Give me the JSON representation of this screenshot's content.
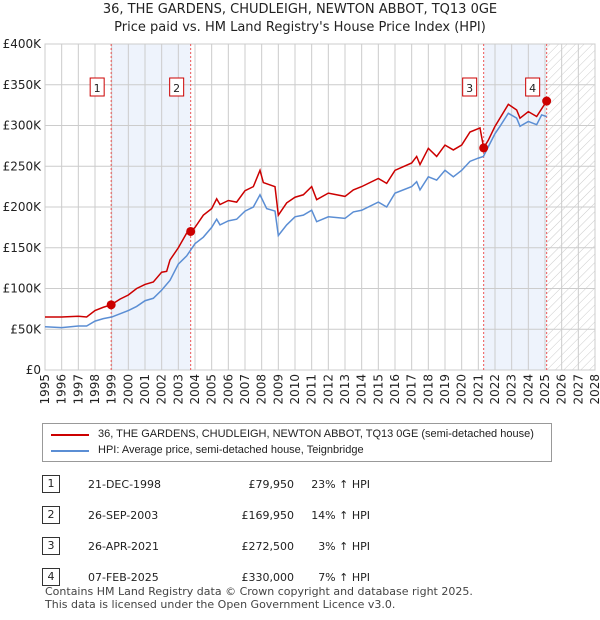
{
  "title": "36, THE GARDENS, CHUDLEIGH, NEWTON ABBOT, TQ13 0GE",
  "subtitle": "Price paid vs. HM Land Registry's House Price Index (HPI)",
  "colors": {
    "property": "#cc0000",
    "hpi": "#5b8ed4",
    "shade": "#eef3fc"
  },
  "chart_data": {
    "type": "line",
    "title": "36, THE GARDENS, CHUDLEIGH, NEWTON ABBOT, TQ13 0GE",
    "xlim": [
      1995,
      2028
    ],
    "ylim": [
      0,
      400000
    ],
    "y_ticks": [
      {
        "v": 0,
        "label": "£0"
      },
      {
        "v": 50000,
        "label": "£50K"
      },
      {
        "v": 100000,
        "label": "£100K"
      },
      {
        "v": 150000,
        "label": "£150K"
      },
      {
        "v": 200000,
        "label": "£200K"
      },
      {
        "v": 250000,
        "label": "£250K"
      },
      {
        "v": 300000,
        "label": "£300K"
      },
      {
        "v": 350000,
        "label": "£350K"
      },
      {
        "v": 400000,
        "label": "£400K"
      }
    ],
    "x_ticks": [
      "1995",
      "1996",
      "1997",
      "1998",
      "1999",
      "2000",
      "2001",
      "2002",
      "2003",
      "2004",
      "2005",
      "2006",
      "2007",
      "2008",
      "2009",
      "2010",
      "2011",
      "2012",
      "2013",
      "2014",
      "2015",
      "2016",
      "2017",
      "2018",
      "2019",
      "2020",
      "2021",
      "2022",
      "2023",
      "2024",
      "2025",
      "2026",
      "2027",
      "2028"
    ],
    "series": [
      {
        "name": "36, THE GARDENS, CHUDLEIGH, NEWTON ABBOT, TQ13 0GE (semi-detached house)",
        "x": [
          1995,
          1996,
          1997,
          1997.5,
          1998,
          1998.5,
          1998.97,
          1999.5,
          2000,
          2000.5,
          2001,
          2001.5,
          2002,
          2002.3,
          2002.5,
          2003,
          2003.5,
          2003.74,
          2004,
          2004.5,
          2005,
          2005.3,
          2005.5,
          2006,
          2006.5,
          2007,
          2007.5,
          2007.9,
          2008.1,
          2008.8,
          2009,
          2009.5,
          2010,
          2010.5,
          2011,
          2011.3,
          2012,
          2013,
          2013.5,
          2014,
          2015,
          2015.5,
          2016,
          2017,
          2017.3,
          2017.5,
          2018,
          2018.5,
          2019,
          2019.5,
          2020,
          2020.5,
          2021.1,
          2021.32,
          2021.6,
          2022,
          2022.8,
          2023.3,
          2023.5,
          2024,
          2024.5,
          2025.1
        ],
        "y": [
          65,
          65,
          66,
          65,
          73,
          77,
          80,
          87,
          92,
          100,
          105,
          108,
          120,
          121,
          135,
          150,
          168,
          170,
          175,
          190,
          198,
          210,
          203,
          208,
          206,
          220,
          225,
          245,
          230,
          225,
          190,
          205,
          212,
          215,
          225,
          209,
          217,
          213,
          221,
          225,
          235,
          229,
          245,
          254,
          262,
          252,
          272,
          262,
          276,
          270,
          276,
          292,
          297,
          272.5,
          282,
          299,
          326,
          319,
          309,
          317,
          311,
          330
        ]
      },
      {
        "name": "HPI: Average price, semi-detached house, Teignbridge",
        "x": [
          1995,
          1996,
          1997,
          1997.5,
          1998,
          1998.5,
          1999,
          2000,
          2000.5,
          2001,
          2001.5,
          2002,
          2002.5,
          2003,
          2003.5,
          2004,
          2004.5,
          2005,
          2005.3,
          2005.5,
          2006,
          2006.5,
          2007,
          2007.5,
          2007.9,
          2008.3,
          2008.8,
          2009,
          2009.5,
          2010,
          2010.5,
          2011,
          2011.3,
          2012,
          2013,
          2013.5,
          2014,
          2015,
          2015.5,
          2016,
          2017,
          2017.3,
          2017.5,
          2018,
          2018.5,
          2019,
          2019.5,
          2020,
          2020.5,
          2021,
          2021.3,
          2022,
          2022.3,
          2022.8,
          2023.3,
          2023.5,
          2024,
          2024.5,
          2024.8,
          2025.1
        ],
        "y": [
          53,
          52,
          54,
          54,
          60,
          63,
          65,
          73,
          78,
          85,
          88,
          98,
          110,
          130,
          140,
          155,
          163,
          175,
          185,
          178,
          183,
          185,
          195,
          200,
          215,
          198,
          195,
          165,
          178,
          188,
          190,
          196,
          182,
          188,
          186,
          194,
          196,
          206,
          200,
          217,
          225,
          231,
          221,
          237,
          233,
          245,
          237,
          245,
          256,
          260,
          262,
          290,
          299,
          315,
          309,
          299,
          305,
          301,
          313,
          311
        ]
      }
    ],
    "y_unit": "thousands GBP",
    "sales": [
      {
        "n": "1",
        "x": 1998.97,
        "y": 79.95
      },
      {
        "n": "2",
        "x": 2003.74,
        "y": 169.95
      },
      {
        "n": "3",
        "x": 2021.32,
        "y": 272.5
      },
      {
        "n": "4",
        "x": 2025.1,
        "y": 330
      }
    ],
    "shaded": [
      [
        1998.97,
        2003.74
      ],
      [
        2021.32,
        2025.1
      ]
    ],
    "forecast_from": 2025.1
  },
  "legend": {
    "property": "36, THE GARDENS, CHUDLEIGH, NEWTON ABBOT, TQ13 0GE (semi-detached house)",
    "hpi": "HPI: Average price, semi-detached house, Teignbridge"
  },
  "table": [
    {
      "n": "1",
      "date": "21-DEC-1998",
      "price": "£79,950",
      "hpi": "23% ↑ HPI"
    },
    {
      "n": "2",
      "date": "26-SEP-2003",
      "price": "£169,950",
      "hpi": "14% ↑ HPI"
    },
    {
      "n": "3",
      "date": "26-APR-2021",
      "price": "£272,500",
      "hpi": "3% ↑ HPI"
    },
    {
      "n": "4",
      "date": "07-FEB-2025",
      "price": "£330,000",
      "hpi": "7% ↑ HPI"
    }
  ],
  "footer": [
    "Contains HM Land Registry data © Crown copyright and database right 2025.",
    "This data is licensed under the Open Government Licence v3.0."
  ]
}
